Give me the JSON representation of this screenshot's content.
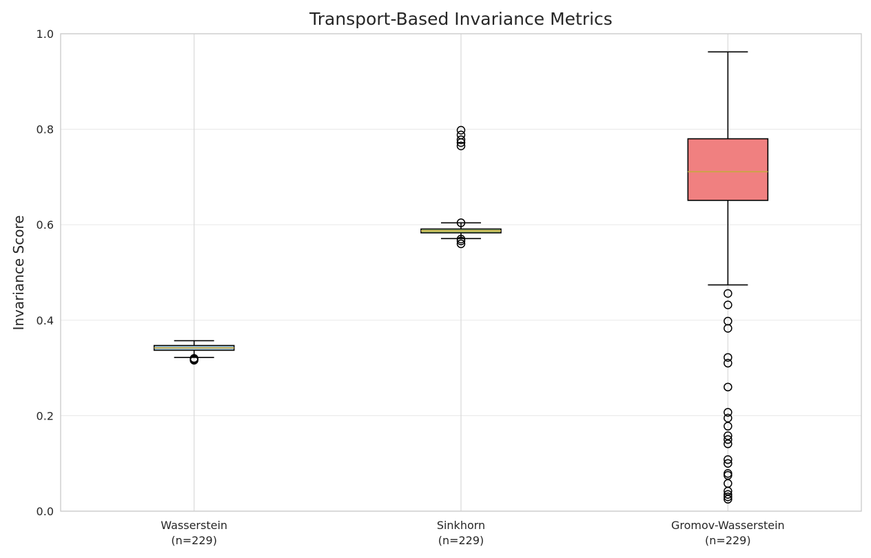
{
  "chart_data": {
    "type": "box",
    "title": "Transport-Based Invariance Metrics",
    "ylabel": "Invariance Score",
    "ylim": [
      0,
      1
    ],
    "yticks": [
      "0.0",
      "0.2",
      "0.4",
      "0.6",
      "0.8",
      "1.0"
    ],
    "grid": true,
    "colors": {
      "median": "#c8a642",
      "box_outline": "#000000",
      "grid": "#ebebeb",
      "vertical_grid": "#d9d9d9",
      "axes": "#cccccc"
    },
    "series": [
      {
        "category": "Wasserstein",
        "count_label": "(n=229)",
        "fill": "#a6cee3",
        "whisker_low": 0.322,
        "q1": 0.337,
        "median": 0.342,
        "q3": 0.347,
        "whisker_high": 0.357,
        "outliers": [
          0.318,
          0.32,
          0.316
        ]
      },
      {
        "category": "Sinkhorn",
        "count_label": "(n=229)",
        "fill": "#b2df8a",
        "whisker_low": 0.571,
        "q1": 0.583,
        "median": 0.587,
        "q3": 0.591,
        "whisker_high": 0.604,
        "outliers": [
          0.798,
          0.788,
          0.778,
          0.772,
          0.765,
          0.604,
          0.57,
          0.566,
          0.56
        ]
      },
      {
        "category": "Gromov-Wasserstein",
        "count_label": "(n=229)",
        "fill": "#f08080",
        "whisker_low": 0.474,
        "q1": 0.651,
        "median": 0.711,
        "q3": 0.78,
        "whisker_high": 0.962,
        "outliers": [
          0.456,
          0.432,
          0.398,
          0.383,
          0.322,
          0.31,
          0.26,
          0.207,
          0.195,
          0.178,
          0.158,
          0.15,
          0.141,
          0.108,
          0.1,
          0.079,
          0.075,
          0.058,
          0.042,
          0.035,
          0.03,
          0.025
        ]
      }
    ]
  }
}
